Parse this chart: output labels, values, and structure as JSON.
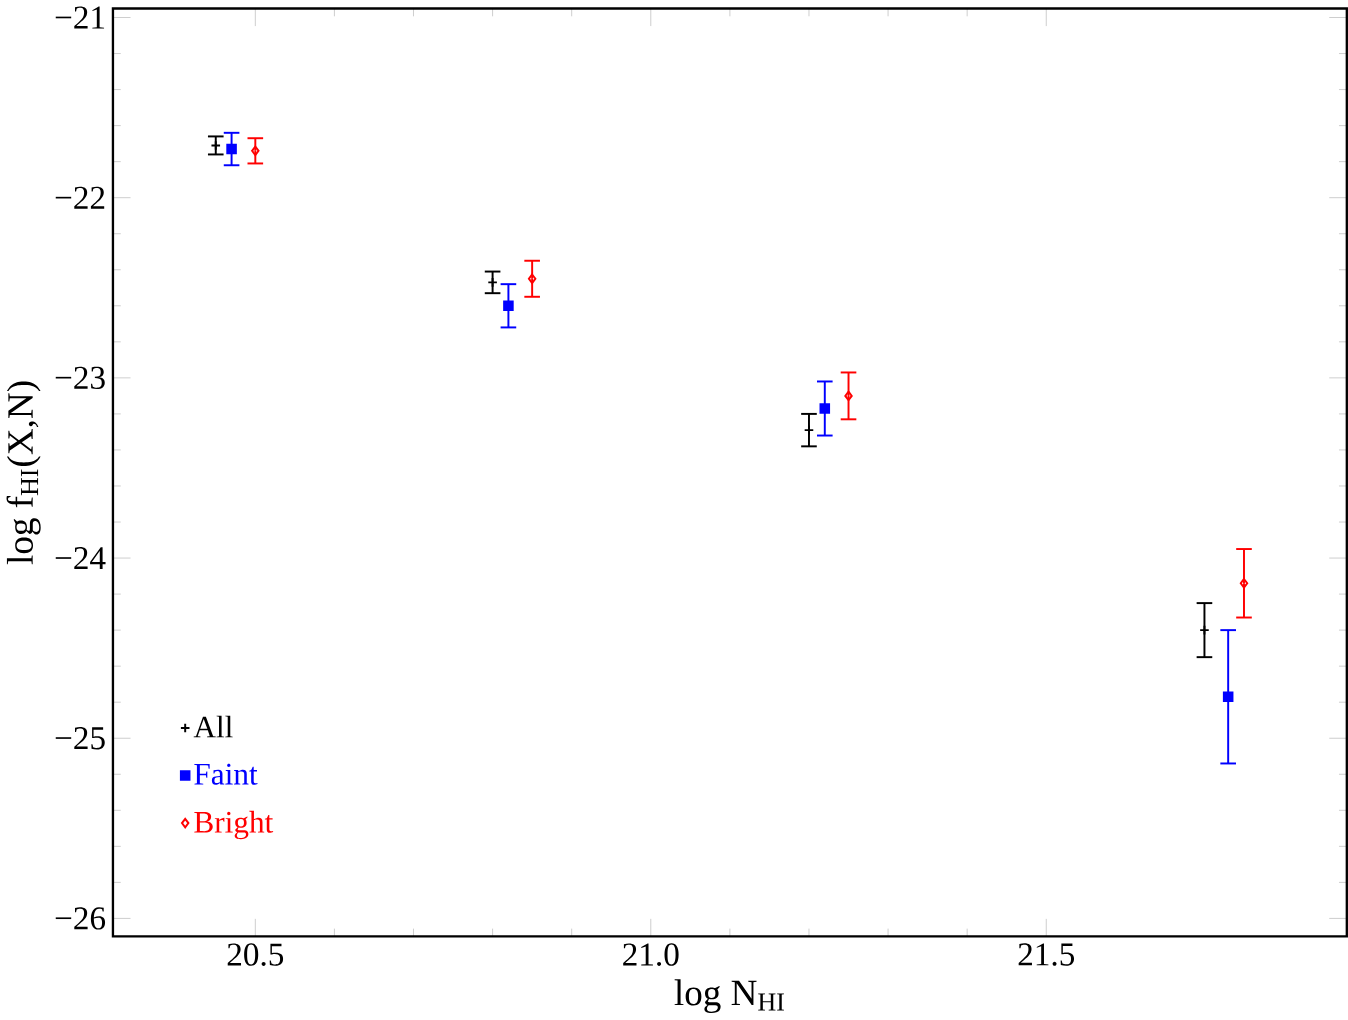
{
  "chart_data": {
    "type": "scatter",
    "xlabel": "log N$_{HI}$",
    "ylabel": "log f$_{HI}$(X,N)",
    "xlim": [
      20.32,
      21.88
    ],
    "ylim": [
      -26.1,
      -20.95
    ],
    "xticks": [
      20.5,
      {
        "value": 21,
        "label": "21.0"
      },
      21.5
    ],
    "yticks": [
      {
        "value": -26,
        "label": "−26"
      },
      {
        "value": -25,
        "label": "−25"
      },
      {
        "value": -24,
        "label": "−24"
      },
      {
        "value": -23,
        "label": "−23"
      },
      {
        "value": -22,
        "label": "−22"
      },
      {
        "value": -21,
        "label": "−21"
      }
    ],
    "legend": "bottom left",
    "grid": false,
    "series": [
      {
        "name": "All",
        "color": "#000000",
        "marker": "cross",
        "x": [
          20.45,
          20.8,
          21.2,
          21.7
        ],
        "values": [
          -21.71,
          -22.47,
          -23.29,
          -24.4
        ],
        "errors": [
          0.05,
          0.06,
          0.09,
          0.15
        ]
      },
      {
        "name": "Faint",
        "color": "#0000ff",
        "marker": "square",
        "x": [
          20.47,
          20.82,
          21.22,
          21.73
        ],
        "values": [
          -21.73,
          -22.6,
          -23.17,
          -24.77
        ],
        "errors": [
          0.09,
          0.12,
          0.15,
          0.37
        ]
      },
      {
        "name": "Bright",
        "color": "#ff0000",
        "marker": "diamond",
        "x": [
          20.5,
          20.85,
          21.25,
          21.75
        ],
        "values": [
          -21.74,
          -22.45,
          -23.1,
          -24.14
        ],
        "errors": [
          0.07,
          0.1,
          0.13,
          0.19
        ]
      }
    ]
  }
}
